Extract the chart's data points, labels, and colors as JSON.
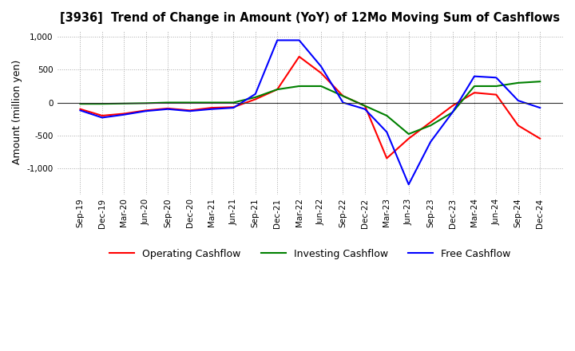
{
  "title": "[3936]  Trend of Change in Amount (YoY) of 12Mo Moving Sum of Cashflows",
  "ylabel": "Amount (million yen)",
  "x_labels": [
    "Sep-19",
    "Dec-19",
    "Mar-20",
    "Jun-20",
    "Sep-20",
    "Dec-20",
    "Mar-21",
    "Jun-21",
    "Sep-21",
    "Dec-21",
    "Mar-22",
    "Jun-22",
    "Sep-22",
    "Dec-22",
    "Mar-23",
    "Jun-23",
    "Sep-23",
    "Dec-23",
    "Mar-24",
    "Jun-24",
    "Sep-24",
    "Dec-24"
  ],
  "operating": [
    -100,
    -200,
    -170,
    -120,
    -90,
    -120,
    -80,
    -70,
    50,
    200,
    700,
    450,
    100,
    -50,
    -850,
    -550,
    -300,
    -50,
    150,
    120,
    -350,
    -550
  ],
  "investing": [
    -20,
    -20,
    -15,
    -10,
    0,
    0,
    0,
    0,
    80,
    200,
    250,
    250,
    100,
    -50,
    -200,
    -480,
    -350,
    -150,
    250,
    250,
    300,
    320
  ],
  "free": [
    -120,
    -230,
    -185,
    -130,
    -100,
    -130,
    -100,
    -80,
    130,
    950,
    950,
    550,
    0,
    -100,
    -450,
    -1250,
    -600,
    -150,
    400,
    380,
    30,
    -80
  ],
  "colors": {
    "operating": "#ff0000",
    "investing": "#008000",
    "free": "#0000ff"
  },
  "ylim": [
    -1400,
    1100
  ],
  "yticks": [
    -1000,
    -500,
    0,
    500,
    1000
  ],
  "background": "#ffffff",
  "grid_color": "#aaaaaa"
}
